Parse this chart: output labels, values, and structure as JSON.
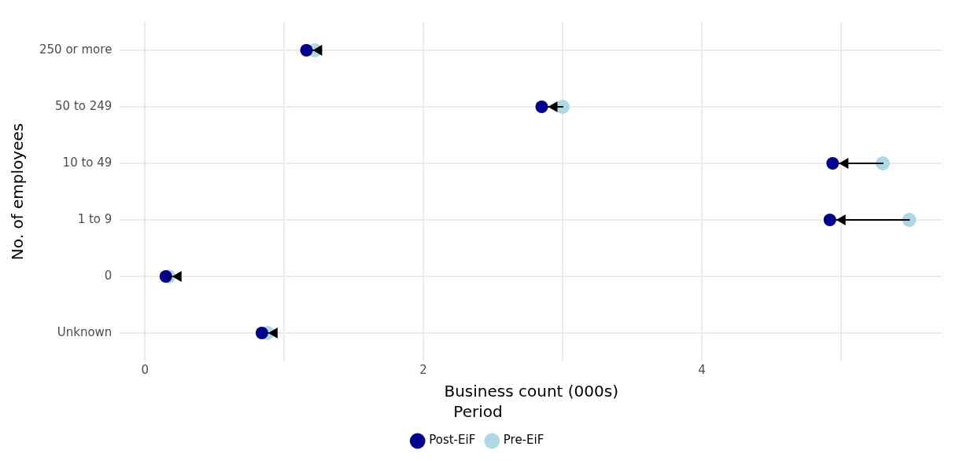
{
  "chart_data": {
    "type": "scatter",
    "orientation": "horizontal",
    "xlabel": "Business count (000s)",
    "ylabel": "No. of employees",
    "legend_title": "Period",
    "legend": "bottom",
    "grid": true,
    "marker": "circle",
    "categories": [
      "250 or more",
      "50 to 249",
      "10 to 49",
      "1 to 9",
      "0",
      "Unknown"
    ],
    "xlim": [
      -0.18,
      5.73
    ],
    "xticks": [
      0,
      {
        "value": 1,
        "label": null
      },
      2,
      {
        "value": 3,
        "label": null
      },
      4,
      {
        "value": 5,
        "label": null
      }
    ],
    "series": [
      {
        "name": "Post-EiF",
        "color": "#00008b",
        "values": [
          1.16,
          2.85,
          4.94,
          4.92,
          0.15,
          0.84
        ]
      },
      {
        "name": "Pre-EiF",
        "color": "#add8e6",
        "values": [
          1.22,
          3.0,
          5.3,
          5.49,
          0.17,
          0.88
        ]
      }
    ]
  }
}
